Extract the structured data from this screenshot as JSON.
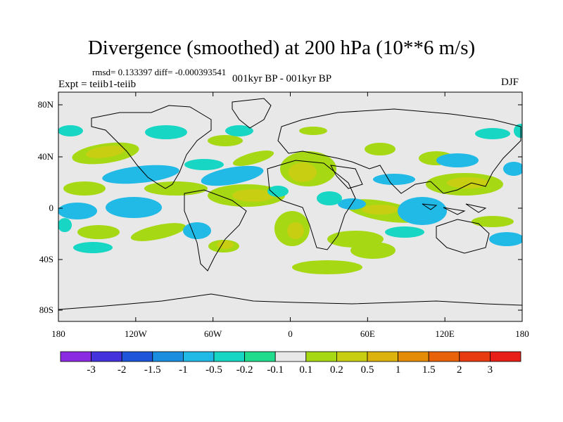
{
  "title": "Divergence (smoothed) at 200 hPa (10**6 m/s)",
  "stats": "rmsd= 0.133397 diff= -0.000393541",
  "experiment": "Expt = teiib1-teiib",
  "period": "001kyr BP - 001kyr BP",
  "season": "DJF",
  "y_ticks": [
    "80N",
    "40N",
    "0",
    "40S",
    "80S"
  ],
  "x_ticks": [
    "180",
    "120W",
    "60W",
    "0",
    "60E",
    "120E",
    "180"
  ],
  "colorbar": {
    "labels": [
      "-3",
      "-2",
      "-1.5",
      "-1",
      "-0.5",
      "-0.2",
      "-0.1",
      "0.1",
      "0.2",
      "0.5",
      "1",
      "1.5",
      "2",
      "3"
    ],
    "colors": [
      "#8a2be2",
      "#4433dd",
      "#1f55d8",
      "#1c8ee0",
      "#21b9e6",
      "#17d6c4",
      "#20dc8c",
      "#e8e8e8",
      "#a6d814",
      "#c8cf12",
      "#dcb30c",
      "#e48c08",
      "#e8620a",
      "#e83c10",
      "#e81e18"
    ]
  },
  "map_background": "#e8e8e8"
}
